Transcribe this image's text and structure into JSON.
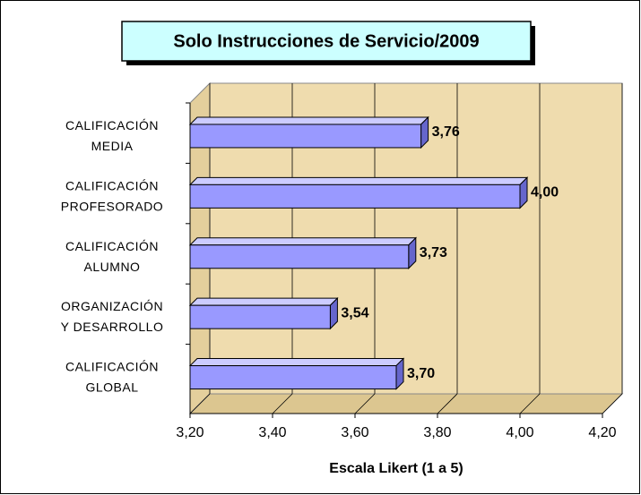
{
  "chart_data": {
    "type": "bar",
    "orientation": "horizontal",
    "title": "Solo Instrucciones de Servicio/2009",
    "x_label": "Escala Likert (1 a 5)",
    "categories": [
      [
        "CALIFICACIÓN",
        "MEDIA"
      ],
      [
        "CALIFICACIÓN",
        "PROFESORADO"
      ],
      [
        "CALIFICACIÓN",
        "ALUMNO"
      ],
      [
        "ORGANIZACIÓN",
        "Y DESARROLLO"
      ],
      [
        "CALIFICACIÓN",
        "GLOBAL"
      ]
    ],
    "values": [
      3.76,
      4.0,
      3.73,
      3.54,
      3.7
    ],
    "value_labels": [
      "3,76",
      "4,00",
      "3,73",
      "3,54",
      "3,70"
    ],
    "color": "#9999ff",
    "xlim": [
      3.2,
      4.2
    ],
    "xticks": [
      {
        "value": 3.2,
        "label": "3,20"
      },
      {
        "value": 3.4,
        "label": "3,40"
      },
      {
        "value": 3.6,
        "label": "3,60"
      },
      {
        "value": 3.8,
        "label": "3,80"
      },
      {
        "value": 4.0,
        "label": "4,00"
      },
      {
        "value": 4.2,
        "label": "4,20"
      }
    ],
    "grid": true
  }
}
